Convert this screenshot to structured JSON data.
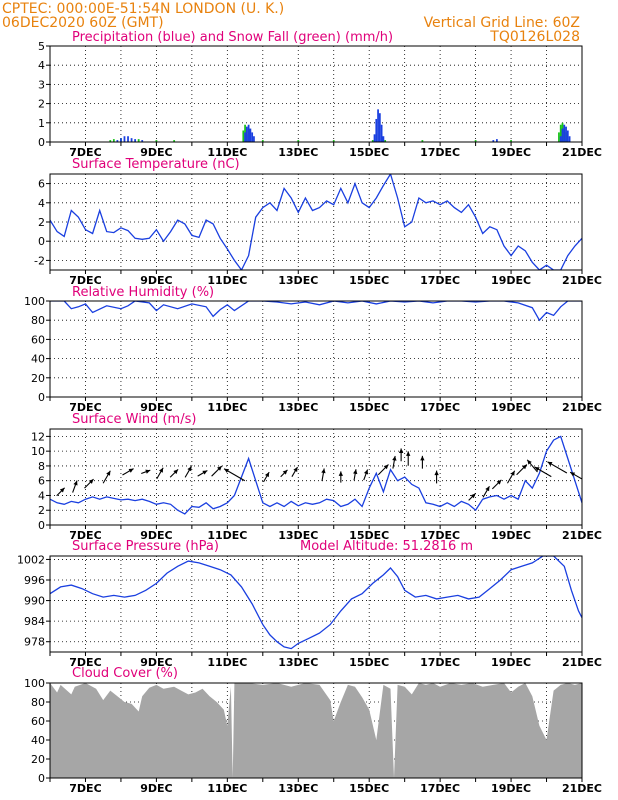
{
  "header": {
    "station": "CPTEC:   000:00E-51:54N   LONDON (U. K.)",
    "run": "06DEC2020 60Z (GMT)",
    "grid_note": "Vertical Grid Line: 60Z",
    "code": "TQ0126L028"
  },
  "x_axis": {
    "ticks": [
      "7DEC",
      "9DEC",
      "11DEC",
      "13DEC",
      "15DEC",
      "17DEC",
      "19DEC",
      "21DEC"
    ],
    "range_days": [
      6.0,
      21.0
    ]
  },
  "colors": {
    "header": "#e8820e",
    "title": "#e0007a",
    "line": "#1a3fe0",
    "snow": "#19c419",
    "cloud": "#a6a6a6",
    "arrow": "#000000"
  },
  "chart_data": [
    {
      "id": "precip",
      "type": "bar",
      "title": "Precipitation (blue) and Snow Fall (green) (mm/h)",
      "ylim": [
        0,
        5
      ],
      "yticks": [
        0,
        1,
        2,
        3,
        4,
        5
      ],
      "series": [
        {
          "name": "Precipitation",
          "x": [
            7.9,
            8.0,
            8.1,
            8.2,
            8.3,
            8.4,
            8.6,
            11.5,
            11.55,
            11.6,
            11.65,
            11.7,
            11.75,
            15.15,
            15.2,
            15.25,
            15.3,
            15.35,
            15.4,
            18.5,
            18.6,
            20.4,
            20.45,
            20.5,
            20.55,
            20.6,
            20.65
          ],
          "values": [
            0.1,
            0.2,
            0.3,
            0.3,
            0.2,
            0.15,
            0.1,
            0.5,
            0.8,
            0.9,
            0.7,
            0.5,
            0.3,
            0.4,
            1.2,
            1.7,
            1.5,
            0.9,
            0.3,
            0.1,
            0.15,
            0.3,
            0.7,
            0.9,
            0.8,
            0.6,
            0.3
          ]
        },
        {
          "name": "Snow Fall",
          "x": [
            7.7,
            7.8,
            8.0,
            8.5,
            9.0,
            9.5,
            11.45,
            11.5,
            11.55,
            11.6,
            12.0,
            13.0,
            14.0,
            15.1,
            15.45,
            16.5,
            18.0,
            19.0,
            20.35,
            20.4,
            20.45,
            20.5,
            20.55
          ],
          "values": [
            0.1,
            0.15,
            0.2,
            0.15,
            0.1,
            0.1,
            0.6,
            0.9,
            0.7,
            0.4,
            0.1,
            0.1,
            0.1,
            0.1,
            0.1,
            0.1,
            0.1,
            0.1,
            0.5,
            0.9,
            1.0,
            0.8,
            0.5
          ]
        }
      ]
    },
    {
      "id": "temp",
      "type": "line",
      "title": "Surface Temperature (nC)",
      "ylim": [
        -3,
        7
      ],
      "yticks": [
        -2,
        0,
        2,
        4,
        6
      ],
      "series": [
        {
          "name": "Temperature",
          "x": [
            6.0,
            6.2,
            6.4,
            6.6,
            6.8,
            7.0,
            7.2,
            7.4,
            7.6,
            7.8,
            8.0,
            8.2,
            8.4,
            8.6,
            8.8,
            9.0,
            9.2,
            9.4,
            9.6,
            9.8,
            10.0,
            10.2,
            10.4,
            10.6,
            10.8,
            11.0,
            11.2,
            11.4,
            11.6,
            11.8,
            12.0,
            12.2,
            12.4,
            12.6,
            12.8,
            13.0,
            13.2,
            13.4,
            13.6,
            13.8,
            14.0,
            14.2,
            14.4,
            14.6,
            14.8,
            15.0,
            15.2,
            15.4,
            15.6,
            15.8,
            16.0,
            16.2,
            16.4,
            16.6,
            16.8,
            17.0,
            17.2,
            17.4,
            17.6,
            17.8,
            18.0,
            18.2,
            18.4,
            18.6,
            18.8,
            19.0,
            19.2,
            19.4,
            19.6,
            19.8,
            20.0,
            20.2,
            20.4,
            20.6,
            20.8,
            21.0
          ],
          "values": [
            2.2,
            1.0,
            0.5,
            3.2,
            2.5,
            1.2,
            0.8,
            3.2,
            1.0,
            0.9,
            1.4,
            1.1,
            0.3,
            0.2,
            0.3,
            1.2,
            0.0,
            1.0,
            2.2,
            1.8,
            0.6,
            0.4,
            2.2,
            1.8,
            0.3,
            -0.8,
            -2.0,
            -3.0,
            -1.5,
            2.5,
            3.5,
            4.0,
            3.2,
            5.5,
            4.5,
            3.0,
            4.5,
            3.2,
            3.5,
            4.2,
            3.8,
            5.5,
            4.0,
            6.0,
            4.0,
            3.5,
            4.5,
            5.8,
            7.0,
            4.5,
            1.5,
            2.0,
            4.5,
            4.0,
            4.2,
            3.8,
            4.2,
            3.5,
            3.0,
            3.8,
            2.5,
            0.8,
            1.5,
            1.2,
            -0.5,
            -1.5,
            -0.5,
            -1.0,
            -2.2,
            -3.0,
            -2.5,
            -3.0,
            -3.0,
            -1.5,
            -0.5,
            0.3
          ]
        }
      ]
    },
    {
      "id": "rh",
      "type": "line",
      "title": "Relative Humidity (%)",
      "ylim": [
        0,
        100
      ],
      "yticks": [
        0,
        20,
        40,
        60,
        80,
        100
      ],
      "series": [
        {
          "name": "Relative Humidity",
          "x": [
            6.0,
            6.4,
            6.6,
            6.8,
            7.0,
            7.2,
            7.6,
            8.0,
            8.2,
            8.4,
            8.8,
            9.0,
            9.2,
            9.6,
            10.0,
            10.4,
            10.6,
            10.8,
            11.0,
            11.2,
            11.6,
            12.0,
            12.4,
            12.8,
            13.2,
            13.6,
            14.0,
            14.4,
            14.8,
            15.2,
            15.6,
            16.0,
            16.4,
            16.8,
            17.2,
            17.6,
            18.0,
            18.4,
            18.8,
            19.2,
            19.6,
            19.8,
            20.0,
            20.2,
            20.4,
            20.6,
            21.0
          ],
          "values": [
            100,
            100,
            92,
            94,
            97,
            88,
            95,
            92,
            95,
            100,
            98,
            90,
            96,
            92,
            97,
            94,
            84,
            91,
            96,
            90,
            100,
            100,
            99,
            97,
            99,
            96,
            100,
            98,
            100,
            97,
            100,
            99,
            100,
            98,
            100,
            100,
            99,
            100,
            100,
            98,
            93,
            80,
            88,
            85,
            94,
            100,
            100
          ]
        }
      ]
    },
    {
      "id": "wind",
      "type": "line",
      "title": "Surface Wind (m/s)",
      "ylim": [
        0,
        13
      ],
      "yticks": [
        0,
        2,
        4,
        6,
        8,
        10,
        12
      ],
      "series": [
        {
          "name": "Wind speed",
          "x": [
            6.0,
            6.2,
            6.4,
            6.6,
            6.8,
            7.0,
            7.2,
            7.4,
            7.6,
            7.8,
            8.0,
            8.2,
            8.4,
            8.6,
            8.8,
            9.0,
            9.2,
            9.4,
            9.6,
            9.8,
            10.0,
            10.2,
            10.4,
            10.6,
            10.8,
            11.0,
            11.2,
            11.4,
            11.6,
            11.8,
            12.0,
            12.2,
            12.4,
            12.6,
            12.8,
            13.0,
            13.2,
            13.4,
            13.6,
            13.8,
            14.0,
            14.2,
            14.4,
            14.6,
            14.8,
            15.0,
            15.2,
            15.4,
            15.6,
            15.8,
            16.0,
            16.2,
            16.4,
            16.6,
            16.8,
            17.0,
            17.2,
            17.4,
            17.6,
            17.8,
            18.0,
            18.2,
            18.4,
            18.6,
            18.8,
            19.0,
            19.2,
            19.4,
            19.6,
            19.8,
            20.0,
            20.2,
            20.4,
            20.6,
            20.8,
            21.0
          ],
          "values": [
            3.5,
            3.0,
            2.8,
            3.2,
            3.0,
            3.5,
            3.8,
            3.5,
            3.8,
            3.6,
            3.4,
            3.5,
            3.3,
            3.5,
            3.2,
            2.8,
            3.0,
            2.8,
            2.0,
            1.5,
            2.5,
            2.4,
            3.0,
            2.2,
            2.5,
            3.0,
            4.0,
            6.5,
            9.0,
            6.0,
            3.0,
            2.5,
            3.0,
            2.5,
            3.2,
            2.6,
            3.0,
            2.8,
            3.0,
            3.5,
            3.3,
            2.5,
            2.8,
            3.5,
            2.5,
            5.0,
            7.0,
            4.5,
            7.5,
            6.0,
            6.5,
            5.5,
            5.0,
            3.0,
            2.8,
            2.5,
            3.0,
            2.5,
            3.2,
            2.8,
            2.0,
            3.5,
            3.8,
            4.0,
            3.5,
            4.0,
            3.5,
            6.0,
            5.0,
            7.0,
            10.0,
            11.5,
            12.0,
            9.0,
            6.0,
            3.0
          ]
        },
        {
          "name": "Wind direction",
          "x": [
            6.3,
            6.7,
            7.1,
            7.6,
            8.2,
            8.7,
            9.1,
            9.5,
            9.9,
            10.3,
            10.7,
            11.2,
            12.1,
            12.6,
            12.9,
            13.7,
            14.2,
            14.6,
            14.9,
            15.4,
            15.7,
            15.9,
            16.1,
            16.5,
            16.9,
            17.9,
            18.3,
            18.6,
            19.0,
            19.3,
            19.6,
            19.9,
            20.3,
            20.9
          ],
          "dir_deg": [
            45,
            70,
            45,
            60,
            30,
            20,
            60,
            45,
            60,
            30,
            45,
            150,
            60,
            45,
            60,
            80,
            90,
            80,
            70,
            45,
            80,
            90,
            90,
            90,
            90,
            45,
            60,
            45,
            60,
            45,
            130,
            150,
            150,
            150
          ],
          "len": [
            0.7,
            0.8,
            0.8,
            0.9,
            0.8,
            0.6,
            0.8,
            0.7,
            0.8,
            0.7,
            0.9,
            1.5,
            0.7,
            0.6,
            0.7,
            0.8,
            0.7,
            0.7,
            0.7,
            0.9,
            0.8,
            0.8,
            0.9,
            0.8,
            0.8,
            0.6,
            0.8,
            0.8,
            0.9,
            0.9,
            1.0,
            1.2,
            1.4,
            1.2
          ],
          "y": [
            4.5,
            5.2,
            5.6,
            6.5,
            7.2,
            7.2,
            7.0,
            7.0,
            7.2,
            7.0,
            7.3,
            6.8,
            6.5,
            7.0,
            7.2,
            6.8,
            6.5,
            6.8,
            6.8,
            7.5,
            8.5,
            9.5,
            9.0,
            8.5,
            6.5,
            3.8,
            4.5,
            5.5,
            6.5,
            7.5,
            8.0,
            7.2,
            7.8,
            6.5
          ]
        }
      ]
    },
    {
      "id": "pressure",
      "type": "line",
      "title": "Surface Pressure (hPa)",
      "annotation": "Model Altitude: 51.2816 m",
      "ylim": [
        975,
        1003
      ],
      "yticks": [
        978,
        984,
        990,
        996,
        1002
      ],
      "series": [
        {
          "name": "Surface Pressure",
          "x": [
            6.0,
            6.3,
            6.6,
            6.9,
            7.2,
            7.5,
            7.8,
            8.1,
            8.4,
            8.7,
            9.0,
            9.3,
            9.6,
            9.9,
            10.2,
            10.5,
            10.8,
            11.1,
            11.4,
            11.7,
            12.0,
            12.2,
            12.4,
            12.6,
            12.8,
            13.0,
            13.3,
            13.6,
            13.9,
            14.2,
            14.5,
            14.8,
            15.1,
            15.4,
            15.6,
            15.8,
            16.0,
            16.3,
            16.6,
            16.9,
            17.2,
            17.5,
            17.8,
            18.1,
            18.4,
            18.7,
            19.0,
            19.3,
            19.6,
            19.9,
            20.2,
            20.5,
            20.7,
            20.9,
            21.0
          ],
          "values": [
            992,
            994,
            994.5,
            993.5,
            992,
            991,
            991.5,
            991,
            991.5,
            993,
            995,
            998,
            1000,
            1001.5,
            1001,
            1000,
            999,
            997.5,
            994,
            989,
            983,
            980,
            978,
            976.5,
            976,
            977.5,
            979,
            980.5,
            983,
            987,
            990.5,
            992,
            995,
            997.5,
            999.5,
            997,
            993,
            991,
            991.5,
            990.5,
            991,
            991.5,
            990.5,
            991,
            993.5,
            996,
            999,
            1000,
            1001,
            1003,
            1004,
            1000,
            993,
            987,
            985
          ]
        }
      ]
    },
    {
      "id": "cloud",
      "type": "area",
      "title": "Cloud Cover (%)",
      "ylim": [
        0,
        100
      ],
      "yticks": [
        0,
        20,
        40,
        60,
        80,
        100
      ],
      "series": [
        {
          "name": "Cloud Cover",
          "x": [
            6.0,
            6.2,
            6.3,
            6.6,
            6.7,
            7.0,
            7.3,
            7.5,
            7.7,
            7.9,
            8.1,
            8.3,
            8.5,
            8.6,
            8.8,
            9.0,
            9.2,
            9.5,
            9.7,
            9.9,
            10.1,
            10.3,
            10.5,
            10.7,
            10.9,
            11.0,
            11.1,
            11.15,
            11.2,
            11.3,
            11.6,
            12.0,
            12.4,
            12.8,
            13.2,
            13.6,
            13.9,
            14.0,
            14.2,
            14.4,
            14.6,
            14.8,
            15.0,
            15.2,
            15.4,
            15.6,
            15.7,
            15.8,
            16.0,
            16.2,
            16.4,
            16.6,
            16.8,
            17.0,
            17.3,
            17.6,
            17.9,
            18.2,
            18.5,
            18.8,
            19.0,
            19.2,
            19.4,
            19.6,
            19.8,
            20.0,
            20.2,
            20.4,
            20.6,
            20.8,
            21.0
          ],
          "values": [
            100,
            90,
            98,
            88,
            96,
            100,
            94,
            82,
            92,
            86,
            80,
            78,
            70,
            86,
            95,
            98,
            94,
            96,
            92,
            88,
            90,
            94,
            86,
            80,
            72,
            55,
            96,
            0,
            100,
            100,
            100,
            98,
            100,
            96,
            100,
            98,
            82,
            60,
            80,
            98,
            96,
            85,
            72,
            40,
            98,
            94,
            0,
            98,
            96,
            88,
            100,
            98,
            100,
            96,
            100,
            98,
            100,
            96,
            98,
            100,
            90,
            96,
            100,
            86,
            55,
            40,
            92,
            98,
            100,
            98,
            100
          ]
        }
      ]
    }
  ]
}
